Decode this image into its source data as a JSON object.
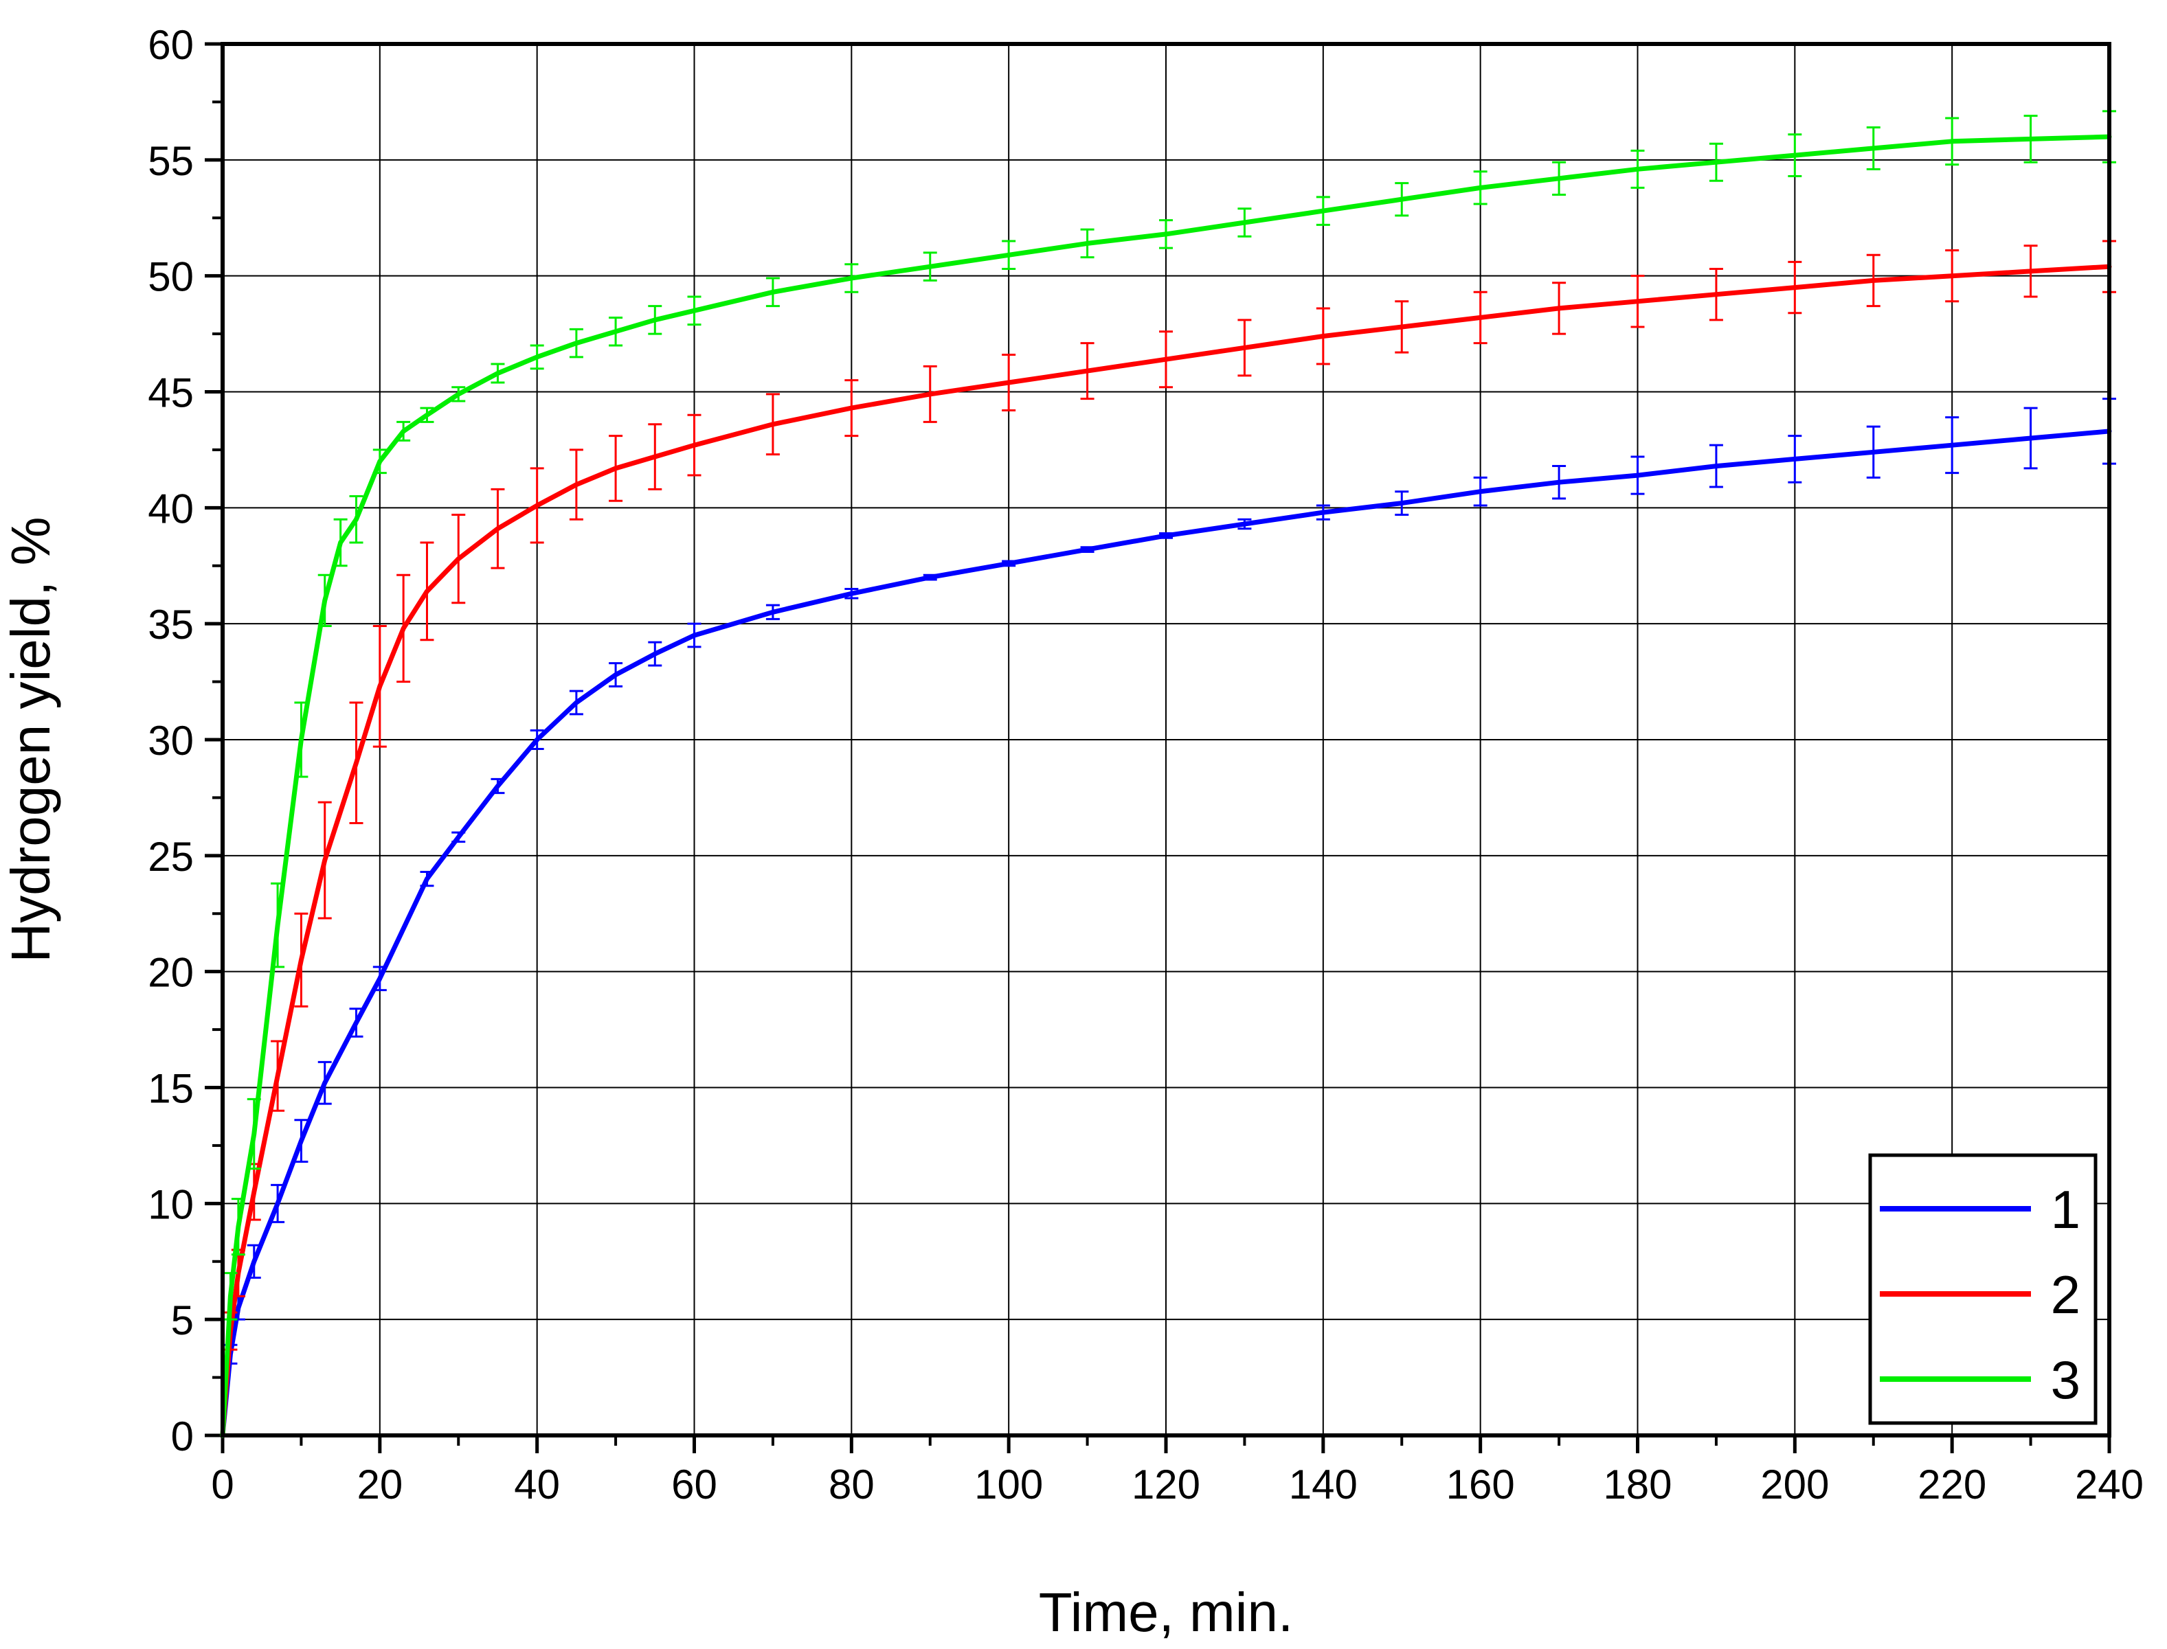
{
  "chart_data": {
    "type": "line",
    "xlabel": "Time, min.",
    "ylabel": "Hydrogen yield, %",
    "xlim": [
      0,
      240
    ],
    "ylim": [
      0,
      60
    ],
    "x_ticks": [
      0,
      20,
      40,
      60,
      80,
      100,
      120,
      140,
      160,
      180,
      200,
      220,
      240
    ],
    "y_ticks": [
      0,
      5,
      10,
      15,
      20,
      25,
      30,
      35,
      40,
      45,
      50,
      55,
      60
    ],
    "grid": true,
    "legend_position": "bottom-right",
    "series": [
      {
        "name": "1",
        "color": "#0000ff",
        "x": [
          0,
          1,
          2,
          4,
          7,
          10,
          13,
          17,
          20,
          26,
          30,
          35,
          40,
          45,
          50,
          55,
          60,
          70,
          80,
          90,
          100,
          110,
          120,
          130,
          140,
          150,
          160,
          170,
          180,
          190,
          200,
          210,
          220,
          230,
          240
        ],
        "y": [
          0,
          3.5,
          5.5,
          7.5,
          10.0,
          12.7,
          15.2,
          17.8,
          19.7,
          24.0,
          25.8,
          28.0,
          30.0,
          31.6,
          32.8,
          33.7,
          34.5,
          35.5,
          36.3,
          37.0,
          37.6,
          38.2,
          38.8,
          39.3,
          39.8,
          40.2,
          40.7,
          41.1,
          41.4,
          41.8,
          42.1,
          42.4,
          42.7,
          43.0,
          43.3
        ],
        "error": [
          0,
          0.4,
          0.5,
          0.7,
          0.8,
          0.9,
          0.9,
          0.6,
          0.5,
          0.3,
          0.2,
          0.3,
          0.4,
          0.5,
          0.5,
          0.5,
          0.5,
          0.3,
          0.2,
          0.1,
          0.1,
          0.1,
          0.1,
          0.2,
          0.3,
          0.5,
          0.6,
          0.7,
          0.8,
          0.9,
          1.0,
          1.1,
          1.2,
          1.3,
          1.4
        ]
      },
      {
        "name": "2",
        "color": "#ff0000",
        "x": [
          0,
          1,
          2,
          4,
          7,
          10,
          13,
          17,
          20,
          23,
          26,
          30,
          35,
          40,
          45,
          50,
          55,
          60,
          70,
          80,
          90,
          100,
          110,
          120,
          130,
          140,
          150,
          160,
          170,
          180,
          190,
          200,
          210,
          220,
          230,
          240
        ],
        "y": [
          0,
          4.5,
          7.0,
          10.5,
          15.5,
          20.5,
          24.8,
          29.0,
          32.3,
          34.8,
          36.4,
          37.8,
          39.1,
          40.1,
          41.0,
          41.7,
          42.2,
          42.7,
          43.6,
          44.3,
          44.9,
          45.4,
          45.9,
          46.4,
          46.9,
          47.4,
          47.8,
          48.2,
          48.6,
          48.9,
          49.2,
          49.5,
          49.8,
          50.0,
          50.2,
          50.4
        ],
        "error": [
          0,
          0.8,
          1.0,
          1.2,
          1.5,
          2.0,
          2.5,
          2.6,
          2.6,
          2.3,
          2.1,
          1.9,
          1.7,
          1.6,
          1.5,
          1.4,
          1.4,
          1.3,
          1.3,
          1.2,
          1.2,
          1.2,
          1.2,
          1.2,
          1.2,
          1.2,
          1.1,
          1.1,
          1.1,
          1.1,
          1.1,
          1.1,
          1.1,
          1.1,
          1.1,
          1.1
        ]
      },
      {
        "name": "3",
        "color": "#00ee00",
        "x": [
          0,
          1,
          2,
          4,
          7,
          10,
          13,
          15,
          17,
          20,
          23,
          26,
          30,
          35,
          40,
          45,
          50,
          55,
          60,
          70,
          80,
          90,
          100,
          110,
          120,
          130,
          140,
          150,
          160,
          170,
          180,
          190,
          200,
          210,
          220,
          230,
          240
        ],
        "y": [
          0,
          6.0,
          9.0,
          13.0,
          22.0,
          30.0,
          36.0,
          38.5,
          39.5,
          42.0,
          43.3,
          44.0,
          44.9,
          45.8,
          46.5,
          47.1,
          47.6,
          48.1,
          48.5,
          49.3,
          49.9,
          50.4,
          50.9,
          51.4,
          51.8,
          52.3,
          52.8,
          53.3,
          53.8,
          54.2,
          54.6,
          54.9,
          55.2,
          55.5,
          55.8,
          55.9,
          56.0
        ],
        "error": [
          0,
          1.0,
          1.2,
          1.5,
          1.8,
          1.6,
          1.1,
          1.0,
          1.0,
          0.5,
          0.4,
          0.3,
          0.3,
          0.4,
          0.5,
          0.6,
          0.6,
          0.6,
          0.6,
          0.6,
          0.6,
          0.6,
          0.6,
          0.6,
          0.6,
          0.6,
          0.6,
          0.7,
          0.7,
          0.7,
          0.8,
          0.8,
          0.9,
          0.9,
          1.0,
          1.0,
          1.1
        ]
      }
    ]
  }
}
